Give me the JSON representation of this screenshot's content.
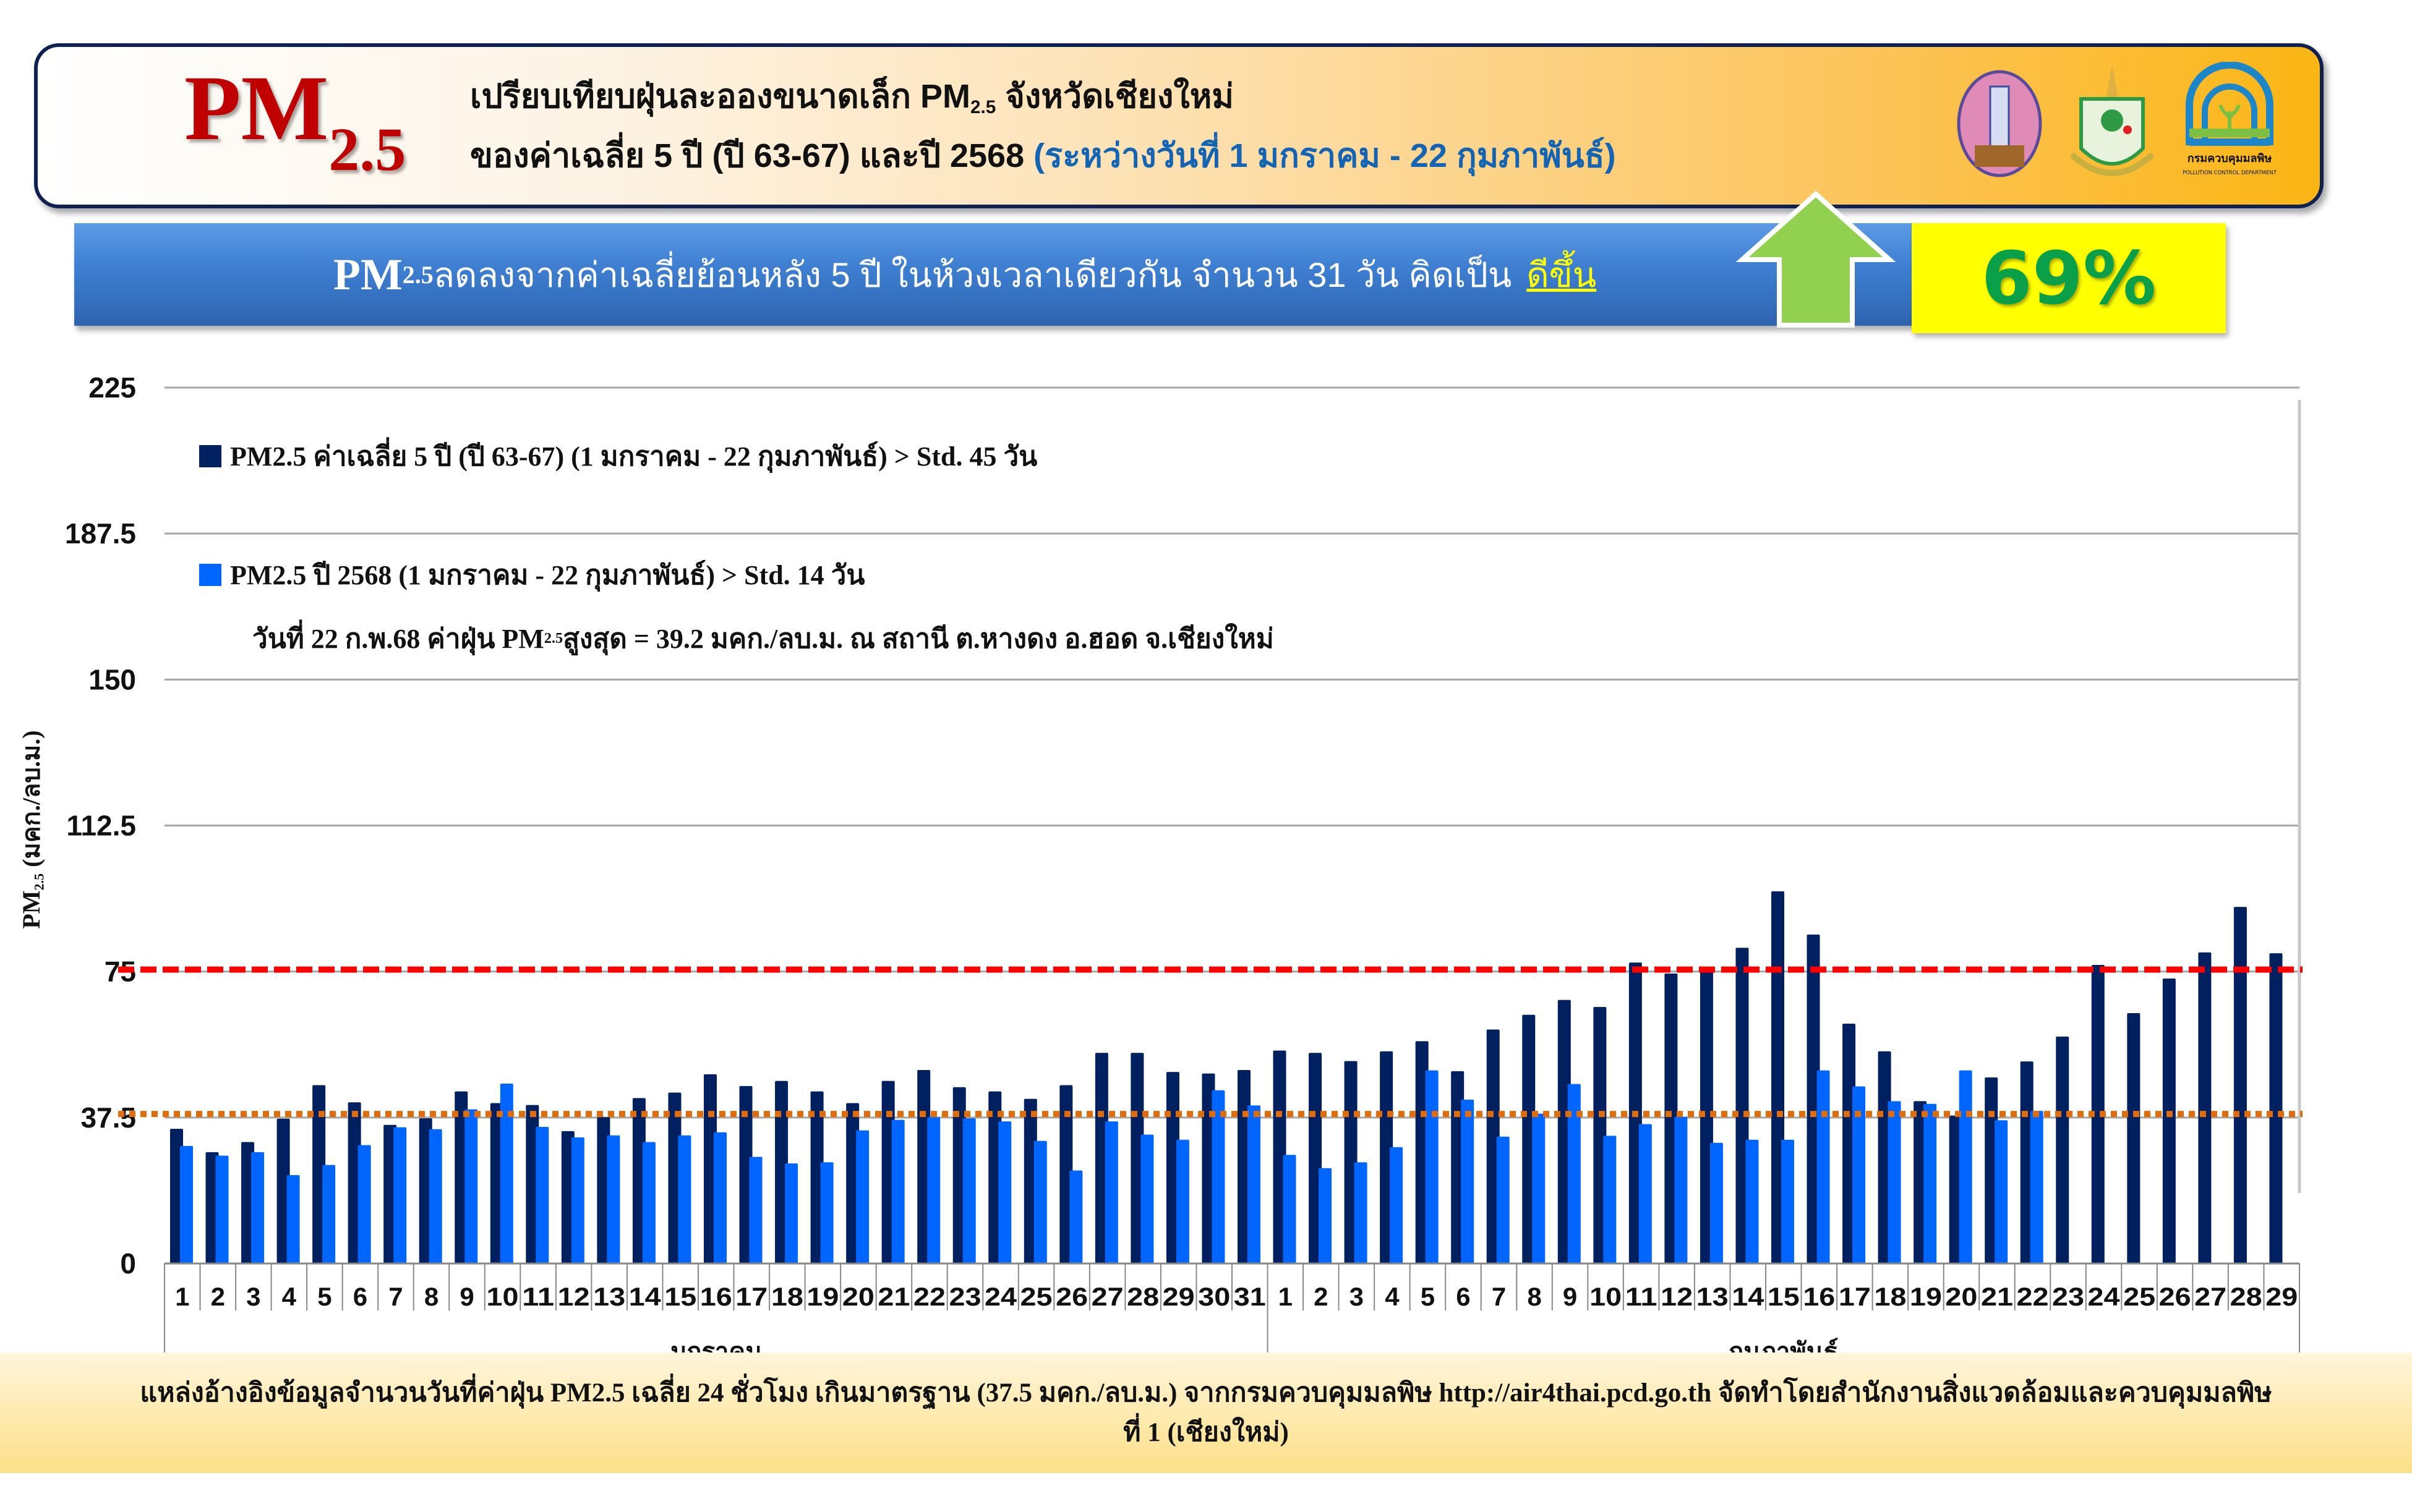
{
  "header": {
    "logo_main": "PM",
    "logo_sub": "2.5",
    "title_line1_a": "เปรียบเทียบฝุ่นละอองขนาดเล็ก PM",
    "title_line1_sub": "2.5",
    "title_line1_b": " จังหวัดเชียงใหม่",
    "title_line2_a": "ของค่าเฉลี่ย 5 ปี (ปี 63-67) และปี 2568 ",
    "title_line2_b": "(ระหว่างวันที่ 1 มกราคม - 22 กุมภาพันธ์)",
    "pcd_logo_text_th": "กรมควบคุมมลพิษ",
    "pcd_logo_text_en": "POLLUTION CONTROL DEPARTMENT"
  },
  "banner": {
    "pm": "PM",
    "pm_sub": "2.5",
    "text": " ลดลงจากค่าเฉลี่ยย้อนหลัง 5 ปี ในห้วงเวลาเดียวกัน จำนวน 31 วัน คิดเป็น",
    "better_label": "ดีขึ้น",
    "percent": "69%",
    "arrow_direction": "up"
  },
  "colors": {
    "series_5yr": "#002060",
    "series_2568": "#0066ff",
    "line_5yr_avg": "#ff0000",
    "line_2568_avg": "#e36c09",
    "arrow": "#92d050",
    "pm_logo": "#c00000"
  },
  "chart_data": {
    "type": "bar",
    "ylabel_pm": "PM",
    "ylabel_sub": "2.5",
    "ylabel_unit": " (มคก./ลบ.ม.)",
    "ylim": [
      0,
      225
    ],
    "yticks": [
      "0",
      "37.5",
      "75",
      "112.5",
      "150",
      "187.5",
      "225"
    ],
    "ytick_values": [
      0,
      37.5,
      75,
      112.5,
      150,
      187.5,
      225
    ],
    "grid": true,
    "months": [
      {
        "label": "มกราคม",
        "days": 31
      },
      {
        "label": "กุมภาพันธ์",
        "days": 29
      }
    ],
    "categories": [
      "1",
      "2",
      "3",
      "4",
      "5",
      "6",
      "7",
      "8",
      "9",
      "10",
      "11",
      "12",
      "13",
      "14",
      "15",
      "16",
      "17",
      "18",
      "19",
      "20",
      "21",
      "22",
      "23",
      "24",
      "25",
      "26",
      "27",
      "28",
      "29",
      "30",
      "31",
      "1",
      "2",
      "3",
      "4",
      "5",
      "6",
      "7",
      "8",
      "9",
      "10",
      "11",
      "12",
      "13",
      "14",
      "15",
      "16",
      "17",
      "18",
      "19",
      "20",
      "21",
      "22",
      "23",
      "24",
      "25",
      "26",
      "27",
      "28",
      "29"
    ],
    "series": [
      {
        "name": "PM2.5 ค่าเฉลี่ย 5 ปี (ปี 63-67) (1 มกราคม - 22 กุมภาพันธ์) > Std. 45 วัน",
        "values": [
          34.6,
          28.6,
          31.2,
          37.2,
          45.8,
          41.4,
          35.6,
          37.3,
          44.2,
          41.2,
          40.7,
          34.0,
          37.6,
          42.5,
          43.9,
          48.6,
          45.6,
          46.9,
          44.2,
          41.2,
          46.9,
          49.7,
          45.3,
          44.2,
          42.3,
          45.8,
          54.1,
          54.1,
          49.2,
          48.8,
          49.7,
          54.7,
          54.1,
          52.0,
          54.5,
          57.1,
          49.4,
          60.1,
          63.9,
          67.7,
          65.9,
          77.3,
          74.5,
          75.5,
          81.1,
          95.6,
          84.5,
          61.6,
          54.5,
          41.7,
          38.0,
          47.8,
          51.9,
          58.3,
          76.7,
          64.3,
          73.2,
          79.9,
          91.6,
          79.7
        ]
      },
      {
        "name": "PM2.5 ปี 2568 (1 มกราคม - 22 กุมภาพันธ์) > Std. 14 วัน",
        "values": [
          30.2,
          27.7,
          28.6,
          22.7,
          25.3,
          30.4,
          35.0,
          34.5,
          39.6,
          46.2,
          35.1,
          32.4,
          32.9,
          31.2,
          32.9,
          33.7,
          27.4,
          25.7,
          26.0,
          34.2,
          36.9,
          37.6,
          37.3,
          36.5,
          31.5,
          23.9,
          36.5,
          33.1,
          31.8,
          44.5,
          40.6,
          27.9,
          24.5,
          26.0,
          29.9,
          49.6,
          42.1,
          32.6,
          38.5,
          46.1,
          32.8,
          35.8,
          37.7,
          31.0,
          31.8,
          31.8,
          49.6,
          45.5,
          41.7,
          41.0,
          49.6,
          36.8,
          39.2,
          null,
          null,
          null,
          null,
          null,
          null,
          null
        ]
      }
    ],
    "reference_lines": [
      {
        "name": "5yr-average",
        "value": 75.5,
        "style": "dashed"
      },
      {
        "name": "2568-average",
        "value": 38.4,
        "style": "dotted"
      }
    ],
    "note_a": "วันที่ 22 ก.พ.68 ค่าฝุ่น PM",
    "note_sub": "2.5",
    "note_b": " สูงสุด = 39.2 มคก./ลบ.ม. ณ สถานี ต.หางดง อ.ฮอด จ.เชียงใหม่",
    "legend_position": "top-left"
  },
  "footer": {
    "line1": "แหล่งอ้างอิงข้อมูลจำนวนวันที่ค่าฝุ่น PM2.5 เฉลี่ย 24 ชั่วโมง เกินมาตรฐาน (37.5 มคก./ลบ.ม.) จากกรมควบคุมมลพิษ http://air4thai.pcd.go.th  จัดทำโดยสำนักงานสิ่งแวดล้อมและควบคุมมลพิษ",
    "line2": "ที่ 1 (เชียงใหม่)"
  }
}
